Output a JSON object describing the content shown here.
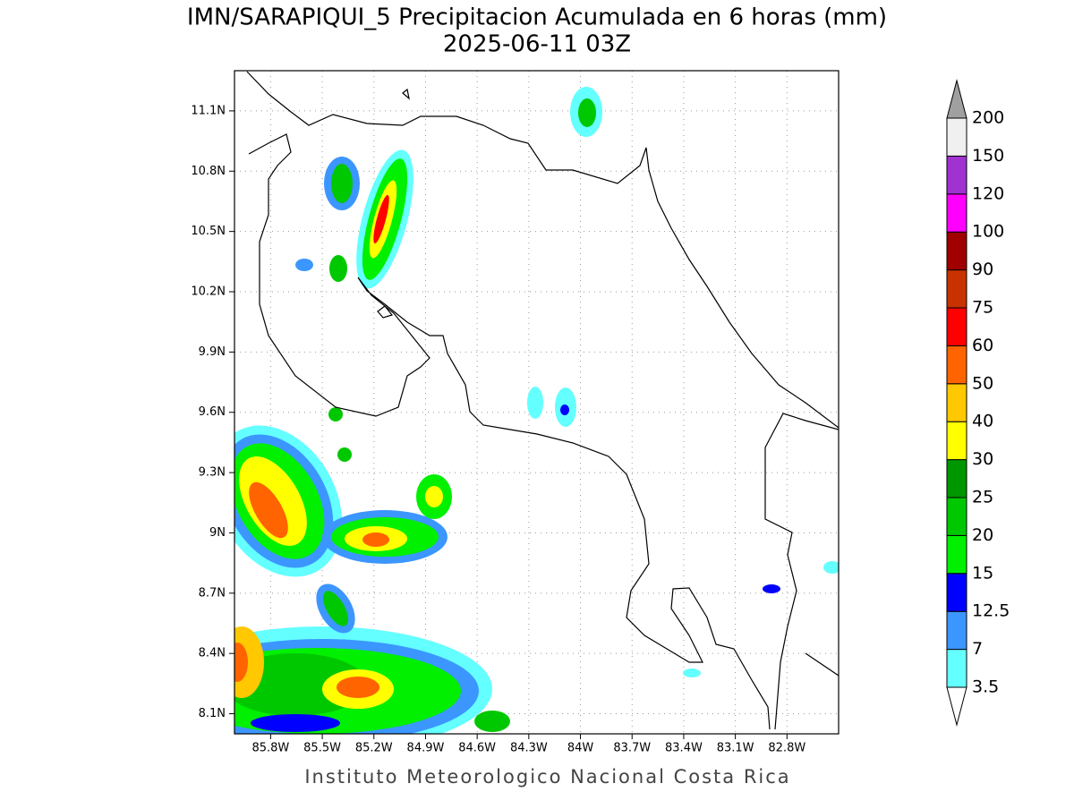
{
  "map": {
    "title": "IMN/SARAPIQUI_5 Precipitacion Acumulada en 6 horas (mm)",
    "subtitle": "2025-06-11 03Z",
    "lonlim": [
      -86.01,
      -82.5
    ],
    "latlim": [
      8.0,
      11.3
    ],
    "lon_ticks": [
      {
        "value": -85.8,
        "label": "85.8W"
      },
      {
        "value": -85.5,
        "label": "85.5W"
      },
      {
        "value": -85.2,
        "label": "85.2W"
      },
      {
        "value": -84.9,
        "label": "84.9W"
      },
      {
        "value": -84.6,
        "label": "84.6W"
      },
      {
        "value": -84.3,
        "label": "84.3W"
      },
      {
        "value": -84.0,
        "label": "84W"
      },
      {
        "value": -83.7,
        "label": "83.7W"
      },
      {
        "value": -83.4,
        "label": "83.4W"
      },
      {
        "value": -83.1,
        "label": "83.1W"
      },
      {
        "value": -82.8,
        "label": "82.8W"
      }
    ],
    "lat_ticks": [
      {
        "value": 8.1,
        "label": "8.1N"
      },
      {
        "value": 8.4,
        "label": "8.4N"
      },
      {
        "value": 8.7,
        "label": "8.7N"
      },
      {
        "value": 9.0,
        "label": "9N"
      },
      {
        "value": 9.3,
        "label": "9.3N"
      },
      {
        "value": 9.6,
        "label": "9.6N"
      },
      {
        "value": 9.9,
        "label": "9.9N"
      },
      {
        "value": 10.2,
        "label": "10.2N"
      },
      {
        "value": 10.5,
        "label": "10.5N"
      },
      {
        "value": 10.8,
        "label": "10.8N"
      },
      {
        "value": 11.1,
        "label": "11.1N"
      }
    ],
    "grid": true,
    "colorbar": {
      "levels": [
        3.5,
        7,
        12.5,
        15,
        20,
        25,
        30,
        40,
        50,
        60,
        75,
        90,
        100,
        120,
        150,
        200
      ],
      "colors": [
        "#64ffff",
        "#3c96ff",
        "#0000ff",
        "#00f000",
        "#00c800",
        "#009600",
        "#ffff00",
        "#ffc800",
        "#ff6400",
        "#ff0000",
        "#c83200",
        "#a00000",
        "#ff00ff",
        "#a032d2",
        "#f0f0f0"
      ],
      "below_color": "#ffffff",
      "above_color": "#a0a0a0"
    },
    "footer": "Instituto Meteorologico Nacional Costa Rica"
  }
}
